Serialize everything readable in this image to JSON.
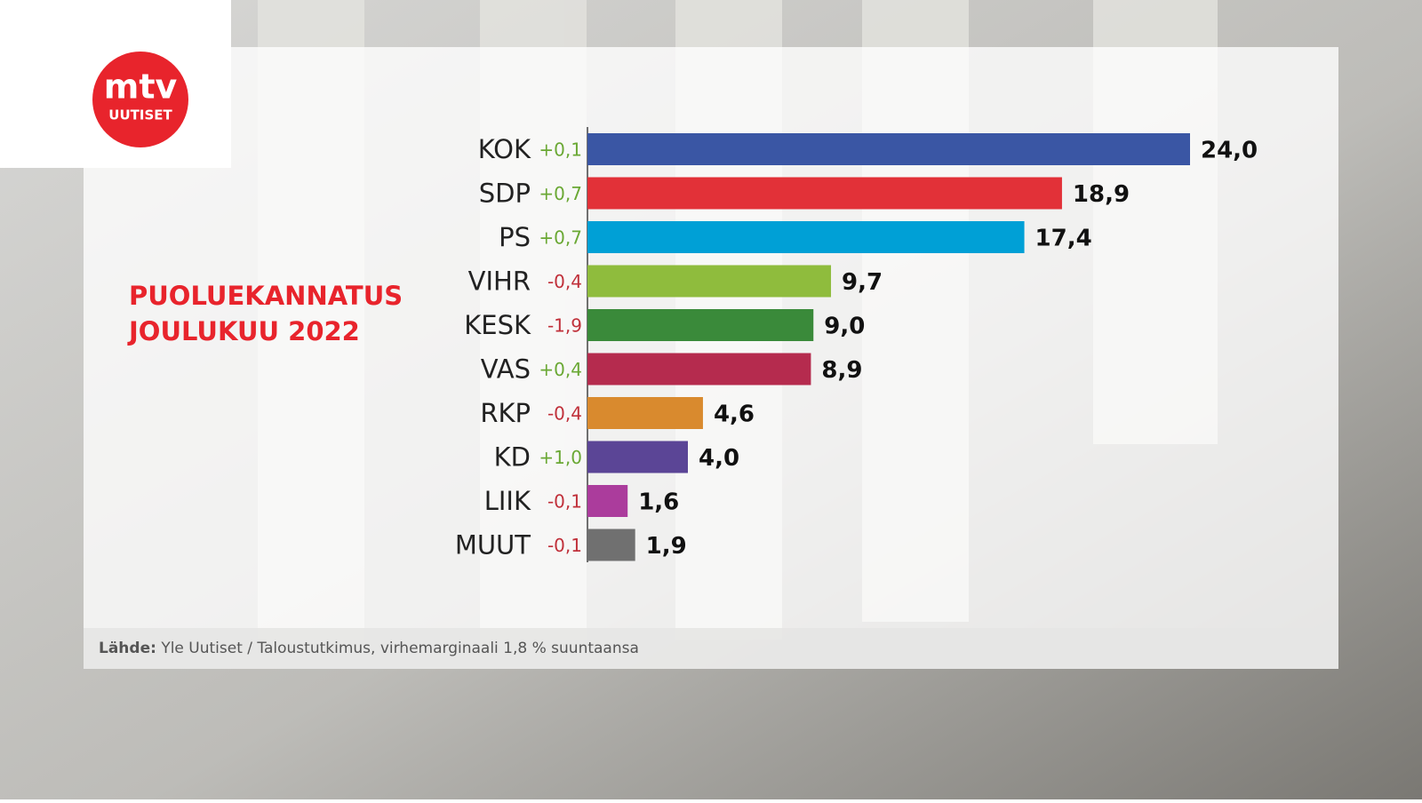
{
  "logo": {
    "name": "mtv",
    "sub": "UUTISET"
  },
  "chart_data": {
    "type": "bar",
    "orientation": "horizontal",
    "title": "PUOLUEKANNATUS",
    "subtitle": "JOULUKUU 2022",
    "categories": [
      "KOK",
      "SDP",
      "PS",
      "VIHR",
      "KESK",
      "VAS",
      "RKP",
      "KD",
      "LIIK",
      "MUUT"
    ],
    "values": [
      24.0,
      18.9,
      17.4,
      9.7,
      9.0,
      8.9,
      4.6,
      4.0,
      1.6,
      1.9
    ],
    "value_labels": [
      "24,0",
      "18,9",
      "17,4",
      "9,7",
      "9,0",
      "8,9",
      "4,6",
      "4,0",
      "1,6",
      "1,9"
    ],
    "colors": [
      "#3a56a4",
      "#e23138",
      "#00a0d6",
      "#8fbc3d",
      "#3a8a3a",
      "#b52b4e",
      "#d98a2e",
      "#5b4596",
      "#ab3c9c",
      "#707070"
    ],
    "changes": [
      0.1,
      0.7,
      0.7,
      -0.4,
      -1.9,
      0.4,
      -0.4,
      1.0,
      -0.1,
      -0.1
    ],
    "change_labels": [
      "+0,1",
      "+0,7",
      "+0,7",
      "-0,4",
      "-1,9",
      "+0,4",
      "-0,4",
      "+1,0",
      "-0,1",
      "-0,1"
    ],
    "positive_color": "#6aa834",
    "negative_color": "#c0303a",
    "source_label": "Lähde:",
    "source": "Yle Uutiset / Taloustutkimus, virhemarginaali 1,8 % suuntaansa"
  }
}
